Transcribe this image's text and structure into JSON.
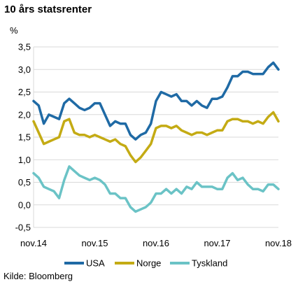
{
  "chart_data": {
    "type": "line",
    "title": "10 års statsrenter",
    "unit_label": "%",
    "source": "Kilde: Bloomberg",
    "xlabel": "",
    "ylabel": "",
    "x_ticks": [
      "nov.14",
      "nov.15",
      "nov.16",
      "nov.17",
      "nov.18"
    ],
    "x_range": [
      "2014-11",
      "2018-11"
    ],
    "y_ticks": [
      "3,5",
      "3,0",
      "2,5",
      "2,0",
      "1,5",
      "1,0",
      "0,5",
      "0,0",
      "-0,5"
    ],
    "ylim": [
      -0.5,
      3.5
    ],
    "grid": "horizontal",
    "legend_position": "bottom",
    "x": [
      "2014-11",
      "2014-12",
      "2015-01",
      "2015-02",
      "2015-03",
      "2015-04",
      "2015-05",
      "2015-06",
      "2015-07",
      "2015-08",
      "2015-09",
      "2015-10",
      "2015-11",
      "2015-12",
      "2016-01",
      "2016-02",
      "2016-03",
      "2016-04",
      "2016-05",
      "2016-06",
      "2016-07",
      "2016-08",
      "2016-09",
      "2016-10",
      "2016-11",
      "2016-12",
      "2017-01",
      "2017-02",
      "2017-03",
      "2017-04",
      "2017-05",
      "2017-06",
      "2017-07",
      "2017-08",
      "2017-09",
      "2017-10",
      "2017-11",
      "2017-12",
      "2018-01",
      "2018-02",
      "2018-03",
      "2018-04",
      "2018-05",
      "2018-06",
      "2018-07",
      "2018-08",
      "2018-09",
      "2018-10",
      "2018-11"
    ],
    "series": [
      {
        "name": "USA",
        "color": "#1f6aa5",
        "values": [
          2.3,
          2.2,
          1.8,
          2.0,
          1.95,
          1.9,
          2.25,
          2.35,
          2.25,
          2.15,
          2.1,
          2.15,
          2.25,
          2.25,
          2.0,
          1.75,
          1.85,
          1.8,
          1.8,
          1.55,
          1.45,
          1.55,
          1.6,
          1.8,
          2.3,
          2.5,
          2.45,
          2.4,
          2.45,
          2.3,
          2.3,
          2.2,
          2.3,
          2.2,
          2.15,
          2.35,
          2.35,
          2.4,
          2.6,
          2.85,
          2.85,
          2.95,
          2.95,
          2.9,
          2.9,
          2.9,
          3.05,
          3.15,
          3.0
        ]
      },
      {
        "name": "Norge",
        "color": "#c4ab14",
        "values": [
          1.85,
          1.6,
          1.35,
          1.4,
          1.45,
          1.5,
          1.85,
          1.9,
          1.6,
          1.55,
          1.55,
          1.5,
          1.55,
          1.5,
          1.45,
          1.4,
          1.45,
          1.35,
          1.3,
          1.1,
          0.95,
          1.05,
          1.2,
          1.35,
          1.7,
          1.75,
          1.75,
          1.7,
          1.75,
          1.65,
          1.6,
          1.55,
          1.6,
          1.6,
          1.55,
          1.6,
          1.65,
          1.65,
          1.85,
          1.9,
          1.9,
          1.85,
          1.85,
          1.8,
          1.85,
          1.8,
          1.95,
          2.05,
          1.85
        ]
      },
      {
        "name": "Tyskland",
        "color": "#6bc3c6",
        "values": [
          0.7,
          0.6,
          0.4,
          0.35,
          0.3,
          0.15,
          0.55,
          0.85,
          0.75,
          0.65,
          0.6,
          0.55,
          0.6,
          0.55,
          0.45,
          0.25,
          0.25,
          0.15,
          0.15,
          -0.05,
          -0.15,
          -0.1,
          -0.05,
          0.05,
          0.25,
          0.25,
          0.35,
          0.25,
          0.35,
          0.25,
          0.4,
          0.35,
          0.5,
          0.4,
          0.4,
          0.4,
          0.35,
          0.35,
          0.6,
          0.7,
          0.55,
          0.6,
          0.45,
          0.35,
          0.35,
          0.3,
          0.45,
          0.45,
          0.35
        ]
      }
    ]
  }
}
